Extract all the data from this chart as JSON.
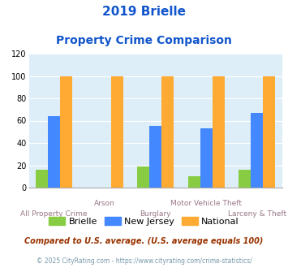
{
  "title_line1": "2019 Brielle",
  "title_line2": "Property Crime Comparison",
  "categories": [
    "All Property Crime",
    "Arson",
    "Burglary",
    "Motor Vehicle Theft",
    "Larceny & Theft"
  ],
  "series": {
    "Brielle": [
      16,
      0,
      19,
      10,
      16
    ],
    "New Jersey": [
      64,
      0,
      55,
      53,
      67
    ],
    "National": [
      100,
      100,
      100,
      100,
      100
    ]
  },
  "bar_colors": {
    "Brielle": "#88cc44",
    "New Jersey": "#4488ff",
    "National": "#ffaa33"
  },
  "ylim": [
    0,
    120
  ],
  "yticks": [
    0,
    20,
    40,
    60,
    80,
    100,
    120
  ],
  "background_color": "#deeef8",
  "title_color": "#1155cc",
  "xlabel_color": "#997788",
  "footer_note": "Compared to U.S. average. (U.S. average equals 100)",
  "footer_credit": "© 2025 CityRating.com - https://www.cityrating.com/crime-statistics/",
  "footer_note_color": "#993300",
  "footer_credit_color": "#7799aa",
  "legend_order": [
    "Brielle",
    "New Jersey",
    "National"
  ],
  "cat_labels_top": [
    "",
    "Arson",
    "",
    "Motor Vehicle Theft",
    ""
  ],
  "cat_labels_bot": [
    "All Property Crime",
    "",
    "Burglary",
    "",
    "Larceny & Theft"
  ]
}
